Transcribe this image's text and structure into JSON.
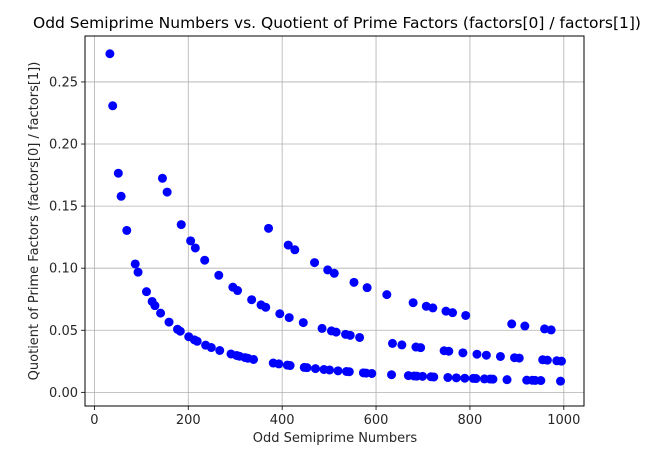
{
  "chart_data": {
    "type": "scatter",
    "title": "Odd Semiprime Numbers vs. Quotient of Prime Factors (factors[0] / factors[1])",
    "xlabel": "Odd Semiprime Numbers",
    "ylabel": "Quotient of Prime Factors (factors[0] / factors[1])",
    "xlim": [
      -20,
      1043
    ],
    "ylim": [
      -0.011,
      0.287
    ],
    "xticks": [
      0,
      200,
      400,
      600,
      800,
      1000
    ],
    "yticks": [
      0.0,
      0.05,
      0.1,
      0.15,
      0.2,
      0.25
    ],
    "xtick_labels": [
      "0",
      "200",
      "400",
      "600",
      "800",
      "1000"
    ],
    "ytick_labels": [
      "0.00",
      "0.05",
      "0.10",
      "0.15",
      "0.20",
      "0.25"
    ],
    "grid": true,
    "color": "#0000ff",
    "points": [
      [
        33,
        0.2727
      ],
      [
        39,
        0.2308
      ],
      [
        51,
        0.1765
      ],
      [
        57,
        0.1579
      ],
      [
        69,
        0.1304
      ],
      [
        87,
        0.1034
      ],
      [
        93,
        0.0968
      ],
      [
        111,
        0.0811
      ],
      [
        123,
        0.0732
      ],
      [
        129,
        0.0698
      ],
      [
        141,
        0.0638
      ],
      [
        159,
        0.0566
      ],
      [
        177,
        0.0508
      ],
      [
        183,
        0.0492
      ],
      [
        201,
        0.0448
      ],
      [
        213,
        0.0423
      ],
      [
        219,
        0.0411
      ],
      [
        237,
        0.038
      ],
      [
        249,
        0.0361
      ],
      [
        267,
        0.0337
      ],
      [
        291,
        0.0309
      ],
      [
        303,
        0.0297
      ],
      [
        309,
        0.0291
      ],
      [
        321,
        0.028
      ],
      [
        327,
        0.0275
      ],
      [
        339,
        0.0265
      ],
      [
        381,
        0.0236
      ],
      [
        393,
        0.0229
      ],
      [
        411,
        0.0219
      ],
      [
        417,
        0.0216
      ],
      [
        447,
        0.0201
      ],
      [
        453,
        0.0199
      ],
      [
        471,
        0.0191
      ],
      [
        489,
        0.0184
      ],
      [
        501,
        0.018
      ],
      [
        519,
        0.0173
      ],
      [
        537,
        0.0168
      ],
      [
        543,
        0.0166
      ],
      [
        573,
        0.0157
      ],
      [
        579,
        0.0155
      ],
      [
        591,
        0.0152
      ],
      [
        633,
        0.0142
      ],
      [
        669,
        0.0135
      ],
      [
        681,
        0.0132
      ],
      [
        687,
        0.0131
      ],
      [
        699,
        0.0129
      ],
      [
        717,
        0.0126
      ],
      [
        723,
        0.0124
      ],
      [
        753,
        0.012
      ],
      [
        771,
        0.0117
      ],
      [
        789,
        0.0114
      ],
      [
        807,
        0.0112
      ],
      [
        813,
        0.0111
      ],
      [
        831,
        0.0108
      ],
      [
        843,
        0.0107
      ],
      [
        849,
        0.0106
      ],
      [
        879,
        0.0102
      ],
      [
        921,
        0.0098
      ],
      [
        933,
        0.0097
      ],
      [
        939,
        0.0096
      ],
      [
        951,
        0.0095
      ],
      [
        993,
        0.009
      ],
      [
        145,
        0.1724
      ],
      [
        155,
        0.1613
      ],
      [
        185,
        0.1351
      ],
      [
        205,
        0.122
      ],
      [
        215,
        0.1163
      ],
      [
        235,
        0.1064
      ],
      [
        265,
        0.0943
      ],
      [
        295,
        0.0847
      ],
      [
        305,
        0.082
      ],
      [
        335,
        0.0746
      ],
      [
        355,
        0.0704
      ],
      [
        365,
        0.0685
      ],
      [
        395,
        0.0633
      ],
      [
        415,
        0.0602
      ],
      [
        445,
        0.0562
      ],
      [
        485,
        0.0515
      ],
      [
        505,
        0.0495
      ],
      [
        515,
        0.0485
      ],
      [
        535,
        0.0467
      ],
      [
        545,
        0.0459
      ],
      [
        565,
        0.0442
      ],
      [
        635,
        0.0394
      ],
      [
        655,
        0.0382
      ],
      [
        685,
        0.0365
      ],
      [
        695,
        0.036
      ],
      [
        745,
        0.0335
      ],
      [
        755,
        0.0331
      ],
      [
        785,
        0.0318
      ],
      [
        815,
        0.0307
      ],
      [
        835,
        0.0299
      ],
      [
        865,
        0.0289
      ],
      [
        895,
        0.0279
      ],
      [
        905,
        0.0276
      ],
      [
        955,
        0.0262
      ],
      [
        965,
        0.0259
      ],
      [
        985,
        0.0254
      ],
      [
        995,
        0.0251
      ],
      [
        371,
        0.1321
      ],
      [
        413,
        0.1186
      ],
      [
        427,
        0.1148
      ],
      [
        469,
        0.1045
      ],
      [
        497,
        0.0986
      ],
      [
        511,
        0.0959
      ],
      [
        553,
        0.0886
      ],
      [
        581,
        0.0843
      ],
      [
        623,
        0.0787
      ],
      [
        679,
        0.0722
      ],
      [
        707,
        0.0693
      ],
      [
        721,
        0.068
      ],
      [
        749,
        0.0654
      ],
      [
        763,
        0.0642
      ],
      [
        791,
        0.0619
      ],
      [
        889,
        0.0551
      ],
      [
        917,
        0.0534
      ],
      [
        959,
        0.0511
      ],
      [
        973,
        0.0503
      ]
    ]
  }
}
